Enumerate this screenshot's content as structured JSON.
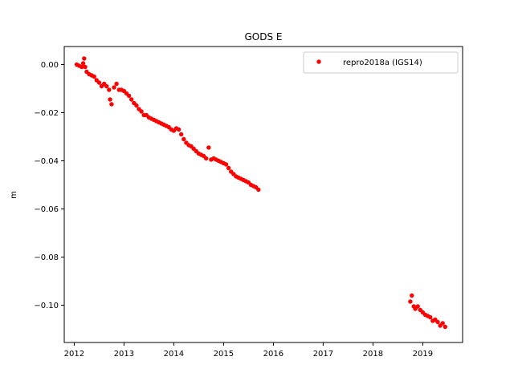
{
  "chart_data": {
    "type": "scatter",
    "title": "GODS E",
    "xlabel": "",
    "ylabel": "m",
    "xlim": [
      2011.8,
      2019.8
    ],
    "ylim": [
      -0.1155,
      0.0075
    ],
    "x_ticks": [
      2012,
      2013,
      2014,
      2015,
      2016,
      2017,
      2018,
      2019
    ],
    "x_tick_labels": [
      "2012",
      "2013",
      "2014",
      "2015",
      "2016",
      "2017",
      "2018",
      "2019"
    ],
    "y_ticks": [
      0.0,
      -0.02,
      -0.04,
      -0.06,
      -0.08,
      -0.1
    ],
    "y_tick_labels": [
      "0.00",
      "−0.02",
      "−0.04",
      "−0.06",
      "−0.08",
      "−0.10"
    ],
    "grid": false,
    "legend_position": "top-right",
    "series": [
      {
        "name": "repro2018a (IGS14)",
        "color": "#ff0000",
        "marker": "circle",
        "points": [
          [
            2012.05,
            0.0
          ],
          [
            2012.1,
            -0.0005
          ],
          [
            2012.15,
            -0.001
          ],
          [
            2012.18,
            0.0005
          ],
          [
            2012.2,
            0.0025
          ],
          [
            2012.22,
            -0.001
          ],
          [
            2012.25,
            -0.003
          ],
          [
            2012.3,
            -0.004
          ],
          [
            2012.35,
            -0.0045
          ],
          [
            2012.4,
            -0.005
          ],
          [
            2012.45,
            -0.0065
          ],
          [
            2012.5,
            -0.0075
          ],
          [
            2012.55,
            -0.009
          ],
          [
            2012.6,
            -0.008
          ],
          [
            2012.65,
            -0.009
          ],
          [
            2012.7,
            -0.0105
          ],
          [
            2012.72,
            -0.0145
          ],
          [
            2012.75,
            -0.0165
          ],
          [
            2012.8,
            -0.0095
          ],
          [
            2012.85,
            -0.008
          ],
          [
            2012.9,
            -0.0105
          ],
          [
            2012.95,
            -0.0105
          ],
          [
            2013.0,
            -0.011
          ],
          [
            2013.05,
            -0.012
          ],
          [
            2013.1,
            -0.013
          ],
          [
            2013.15,
            -0.0145
          ],
          [
            2013.2,
            -0.016
          ],
          [
            2013.25,
            -0.017
          ],
          [
            2013.3,
            -0.0185
          ],
          [
            2013.35,
            -0.0195
          ],
          [
            2013.4,
            -0.021
          ],
          [
            2013.45,
            -0.021
          ],
          [
            2013.5,
            -0.022
          ],
          [
            2013.55,
            -0.0225
          ],
          [
            2013.6,
            -0.023
          ],
          [
            2013.65,
            -0.0235
          ],
          [
            2013.7,
            -0.024
          ],
          [
            2013.75,
            -0.0245
          ],
          [
            2013.8,
            -0.025
          ],
          [
            2013.85,
            -0.0255
          ],
          [
            2013.9,
            -0.026
          ],
          [
            2013.95,
            -0.027
          ],
          [
            2014.0,
            -0.0275
          ],
          [
            2014.05,
            -0.0265
          ],
          [
            2014.1,
            -0.027
          ],
          [
            2014.15,
            -0.029
          ],
          [
            2014.2,
            -0.031
          ],
          [
            2014.25,
            -0.0325
          ],
          [
            2014.3,
            -0.0335
          ],
          [
            2014.35,
            -0.034
          ],
          [
            2014.4,
            -0.035
          ],
          [
            2014.45,
            -0.036
          ],
          [
            2014.5,
            -0.037
          ],
          [
            2014.55,
            -0.0375
          ],
          [
            2014.6,
            -0.038
          ],
          [
            2014.65,
            -0.039
          ],
          [
            2014.7,
            -0.0345
          ],
          [
            2014.75,
            -0.0395
          ],
          [
            2014.8,
            -0.039
          ],
          [
            2014.85,
            -0.0395
          ],
          [
            2014.9,
            -0.04
          ],
          [
            2014.95,
            -0.0405
          ],
          [
            2015.0,
            -0.041
          ],
          [
            2015.05,
            -0.0415
          ],
          [
            2015.1,
            -0.043
          ],
          [
            2015.15,
            -0.0445
          ],
          [
            2015.2,
            -0.0455
          ],
          [
            2015.25,
            -0.0465
          ],
          [
            2015.3,
            -0.047
          ],
          [
            2015.35,
            -0.0475
          ],
          [
            2015.4,
            -0.048
          ],
          [
            2015.45,
            -0.0485
          ],
          [
            2015.5,
            -0.049
          ],
          [
            2015.55,
            -0.05
          ],
          [
            2015.6,
            -0.0505
          ],
          [
            2015.65,
            -0.051
          ],
          [
            2015.7,
            -0.052
          ],
          [
            2018.75,
            -0.0985
          ],
          [
            2018.78,
            -0.096
          ],
          [
            2018.82,
            -0.1005
          ],
          [
            2018.85,
            -0.1015
          ],
          [
            2018.9,
            -0.1005
          ],
          [
            2018.95,
            -0.102
          ],
          [
            2019.0,
            -0.103
          ],
          [
            2019.05,
            -0.104
          ],
          [
            2019.1,
            -0.1045
          ],
          [
            2019.15,
            -0.105
          ],
          [
            2019.2,
            -0.1065
          ],
          [
            2019.25,
            -0.106
          ],
          [
            2019.3,
            -0.107
          ],
          [
            2019.35,
            -0.1085
          ],
          [
            2019.4,
            -0.1075
          ],
          [
            2019.45,
            -0.109
          ]
        ]
      }
    ]
  }
}
